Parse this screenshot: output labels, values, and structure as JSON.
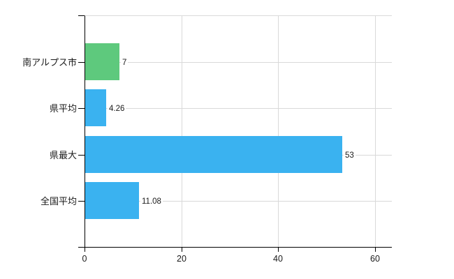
{
  "chart_data": {
    "type": "bar",
    "orientation": "horizontal",
    "title": "",
    "categories": [
      "南アルプス市",
      "県平均",
      "県最大",
      "全国平均"
    ],
    "values": [
      7,
      4.26,
      53,
      11.08
    ],
    "value_labels": [
      "7",
      "4.26",
      "53",
      "11.08"
    ],
    "x_ticks": [
      0,
      20,
      40,
      60
    ],
    "x_tick_labels": [
      "0",
      "20",
      "40",
      "60"
    ],
    "xlim": [
      0,
      63.3
    ],
    "grid": true,
    "legend_position": "none",
    "colors": {
      "bars": [
        "#5ec97d",
        "#3ab2f0",
        "#3ab2f0",
        "#3ab2f0"
      ],
      "grid": "#d9d9d9",
      "axis": "#000000",
      "text": "#1a1a1a",
      "background": "#ffffff"
    }
  }
}
